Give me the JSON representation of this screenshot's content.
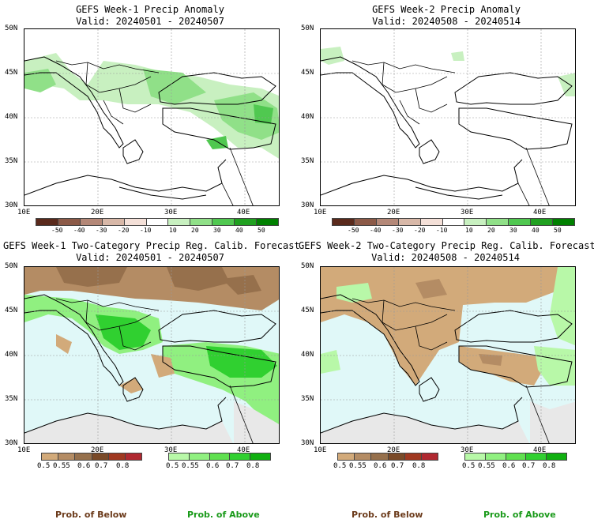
{
  "panels": [
    {
      "title_line1": "GEFS Week-1 Precip Anomaly",
      "title_line2": "Valid: 20240501 - 20240507"
    },
    {
      "title_line1": "GEFS Week-2 Precip Anomaly",
      "title_line2": "Valid: 20240508 - 20240514"
    },
    {
      "title_line1": "GEFS Week-1 Two-Category Precip Reg. Calib. Forecast",
      "title_line2": "Valid: 20240501 - 20240507"
    },
    {
      "title_line1": "GEFS Week-2 Two-Category Precip Reg. Calib. Forecast",
      "title_line2": "Valid: 20240508 - 20240514"
    }
  ],
  "axes": {
    "lat_labels": [
      "50N",
      "45N",
      "40N",
      "35N",
      "30N"
    ],
    "lon_labels": [
      "10E",
      "20E",
      "30E",
      "40E"
    ]
  },
  "anomaly_scale": {
    "ticks": [
      "-50",
      "-40",
      "-30",
      "-20",
      "-10",
      "10",
      "20",
      "30",
      "40",
      "50"
    ],
    "colors": [
      "#5a2a1c",
      "#8c5a48",
      "#b48878",
      "#d8b8a8",
      "#f4e0d8",
      "#ffffff",
      "#c8f0c0",
      "#90e088",
      "#50c850",
      "#20a020",
      "#008000"
    ]
  },
  "prob_scale": {
    "below_ticks": [
      "0.5",
      "0.55",
      "0.6",
      "0.7",
      "0.8"
    ],
    "above_ticks": [
      "0.5",
      "0.55",
      "0.6",
      "0.7",
      "0.8"
    ],
    "below_colors": [
      "#d2aa7a",
      "#b48c64",
      "#96704c",
      "#7a4a28",
      "#a03820",
      "#b02830"
    ],
    "above_colors": [
      "#b8f8a8",
      "#90f080",
      "#60e050",
      "#30d030",
      "#10b010"
    ],
    "below_label": "Prob. of Below",
    "above_label": "Prob. of Above",
    "below_label_color": "#6b3a1a",
    "above_label_color": "#1a9a1a"
  },
  "map_colors": {
    "ocean_prob": "#e0f8f8",
    "outside": "#e8e8e8",
    "land_neutral": "#ffffff",
    "coast": "#000000",
    "grid": "#999999"
  }
}
